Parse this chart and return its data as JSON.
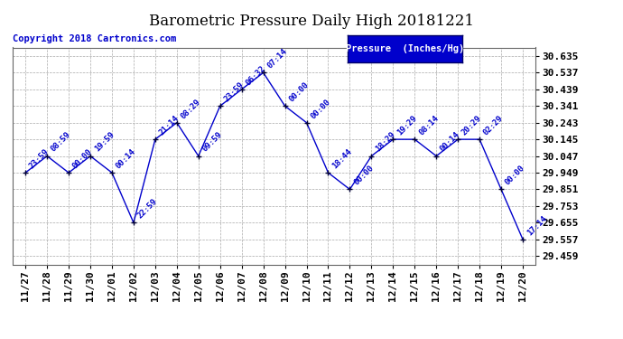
{
  "title": "Barometric Pressure Daily High 20181221",
  "copyright": "Copyright 2018 Cartronics.com",
  "legend_label": "Pressure  (Inches/Hg)",
  "x_labels": [
    "11/27",
    "11/28",
    "11/29",
    "11/30",
    "12/01",
    "12/02",
    "12/03",
    "12/04",
    "12/05",
    "12/06",
    "12/07",
    "12/08",
    "12/09",
    "12/10",
    "12/11",
    "12/12",
    "12/13",
    "12/14",
    "12/15",
    "12/16",
    "12/17",
    "12/18",
    "12/19",
    "12/20"
  ],
  "y_values": [
    29.949,
    30.047,
    29.949,
    30.047,
    29.949,
    29.655,
    30.145,
    30.243,
    30.047,
    30.341,
    30.439,
    30.537,
    30.341,
    30.243,
    29.949,
    29.851,
    30.047,
    30.145,
    30.145,
    30.047,
    30.145,
    30.145,
    29.851,
    29.557
  ],
  "point_labels": [
    "23:59",
    "08:59",
    "00:00",
    "19:59",
    "00:14",
    "22:59",
    "21:14",
    "08:29",
    "09:59",
    "23:59",
    "06:32",
    "07:14",
    "00:00",
    "00:00",
    "18:44",
    "00:00",
    "18:29",
    "19:29",
    "08:14",
    "00:14",
    "20:29",
    "02:29",
    "00:00",
    "17:14"
  ],
  "y_ticks": [
    29.459,
    29.557,
    29.655,
    29.753,
    29.851,
    29.949,
    30.047,
    30.145,
    30.243,
    30.341,
    30.439,
    30.537,
    30.635
  ],
  "ylim": [
    29.41,
    30.685
  ],
  "line_color": "#0000cc",
  "marker_color": "#000033",
  "bg_color": "#ffffff",
  "grid_color": "#aaaaaa",
  "title_color": "#000000",
  "copyright_color": "#0000cc",
  "legend_bg": "#0000cc",
  "legend_text_color": "#ffffff",
  "annotation_color": "#0000cc",
  "annotation_fontsize": 6.5,
  "title_fontsize": 12,
  "tick_fontsize": 8,
  "copyright_fontsize": 7.5
}
